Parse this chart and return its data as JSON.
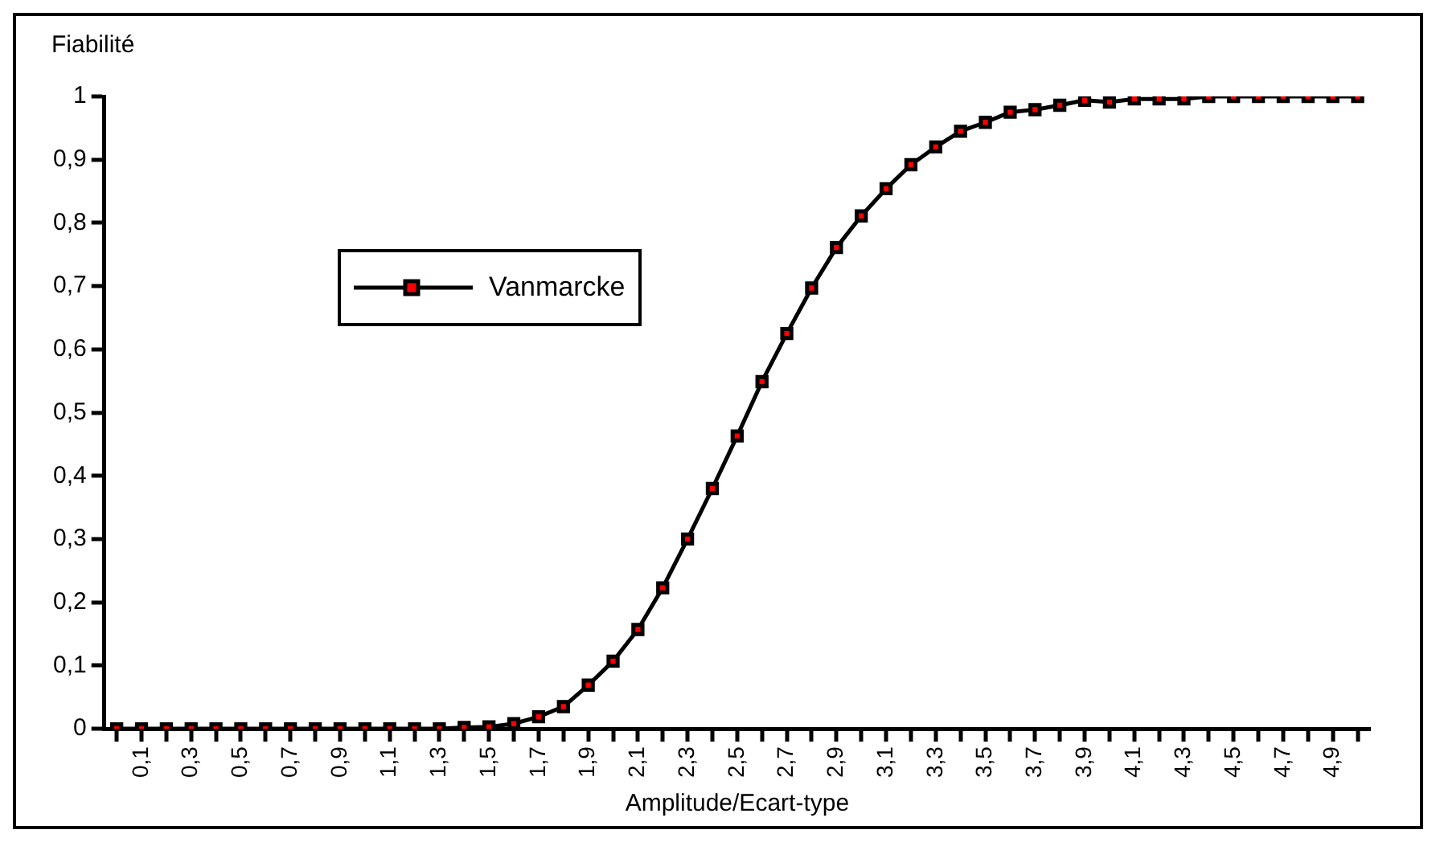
{
  "chart_data": {
    "type": "line",
    "xlabel": "Amplitude/Ecart-type",
    "ylabel": "Fiabilité",
    "categories": [
      null,
      "0,1",
      null,
      "0,3",
      null,
      "0,5",
      null,
      "0,7",
      null,
      "0,9",
      null,
      "1,1",
      null,
      "1,3",
      null,
      "1,5",
      null,
      "1,7",
      null,
      "1,9",
      null,
      "2,1",
      null,
      "2,3",
      null,
      "2,5",
      null,
      "2,7",
      null,
      "2,9",
      null,
      "3,1",
      null,
      "3,3",
      null,
      "3,5",
      null,
      "3,7",
      null,
      "3,9",
      null,
      "4,1",
      null,
      "4,3",
      null,
      "4,5",
      null,
      "4,7",
      null,
      "4,9",
      null
    ],
    "series": [
      {
        "name": "Vanmarcke",
        "color": "#000000",
        "values": [
          0,
          0,
          0,
          0,
          0,
          0,
          0,
          0,
          0,
          0,
          0,
          0,
          0,
          0,
          0.002,
          0.003,
          0.008,
          0.019,
          0.035,
          0.069,
          0.107,
          0.157,
          0.223,
          0.3,
          0.38,
          0.463,
          0.549,
          0.625,
          0.697,
          0.761,
          0.811,
          0.854,
          0.892,
          0.92,
          0.945,
          0.959,
          0.975,
          0.979,
          0.986,
          0.994,
          0.991,
          0.996,
          0.996,
          0.996,
          1,
          1,
          1,
          1,
          1,
          1,
          1
        ]
      }
    ],
    "ylim": [
      0,
      1
    ],
    "yticks": [
      0,
      {
        "value": 0.1,
        "label": "0,1"
      },
      {
        "value": 0.2,
        "label": "0,2"
      },
      {
        "value": 0.3,
        "label": "0,3"
      },
      {
        "value": 0.4,
        "label": "0,4"
      },
      {
        "value": 0.5,
        "label": "0,5"
      },
      {
        "value": 0.6,
        "label": "0,6"
      },
      {
        "value": 0.7,
        "label": "0,7"
      },
      {
        "value": 0.8,
        "label": "0,8"
      },
      {
        "value": 0.9,
        "label": "0,9"
      },
      1
    ],
    "grid": false,
    "legend": "top left",
    "marker": "square",
    "line_style": "solid"
  }
}
